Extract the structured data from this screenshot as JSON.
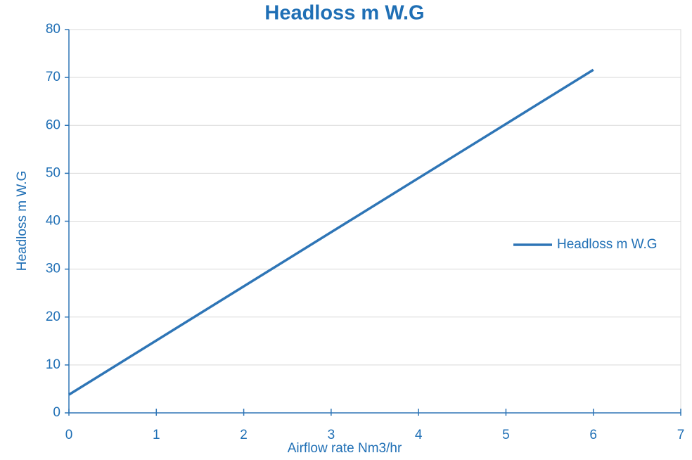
{
  "chart_data": {
    "type": "line",
    "title": "Headloss m W.G",
    "x_label": "Airflow rate Nm3/hr",
    "y_label": "Headloss m W.G",
    "x": [
      0,
      1,
      2,
      3,
      4,
      5,
      6
    ],
    "series": [
      {
        "name": "Headloss m W.G",
        "color": "#2e75b6",
        "values": [
          3.8,
          15.1,
          26.4,
          37.7,
          49.0,
          60.3,
          71.6
        ]
      }
    ],
    "xlim": [
      0,
      7
    ],
    "xticks": [
      0,
      1,
      2,
      3,
      4,
      5,
      6,
      7
    ],
    "ylim": [
      0,
      80
    ],
    "yticks": [
      0,
      10,
      20,
      30,
      40,
      50,
      60,
      70,
      80
    ],
    "grid": true,
    "legend": "right"
  }
}
